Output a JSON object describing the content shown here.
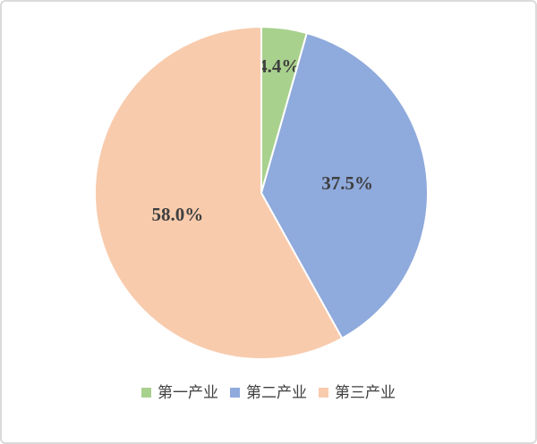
{
  "frame": {
    "background": "#FFFFFF",
    "border_color": "#DBDBDB"
  },
  "chart_data": {
    "type": "pie",
    "title": "",
    "start_angle_deg": 0,
    "direction": "clockwise",
    "legend_position": "bottom",
    "separator_color": "#FFFFFF",
    "data_label_color": "#3F3F3F",
    "legend_text_color": "#404040",
    "categories": [
      "第一产业",
      "第二产业",
      "第三产业"
    ],
    "values": [
      4.4,
      37.5,
      58.0
    ],
    "slices": [
      {
        "label": "第一产业",
        "value": 4.4,
        "percent_label": "4.4%",
        "color": "#A9D18E"
      },
      {
        "label": "第二产业",
        "value": 37.5,
        "percent_label": "37.5%",
        "color": "#8FAADC"
      },
      {
        "label": "第三产业",
        "value": 58.0,
        "percent_label": "58.0%",
        "color": "#F8CBAD"
      }
    ]
  }
}
